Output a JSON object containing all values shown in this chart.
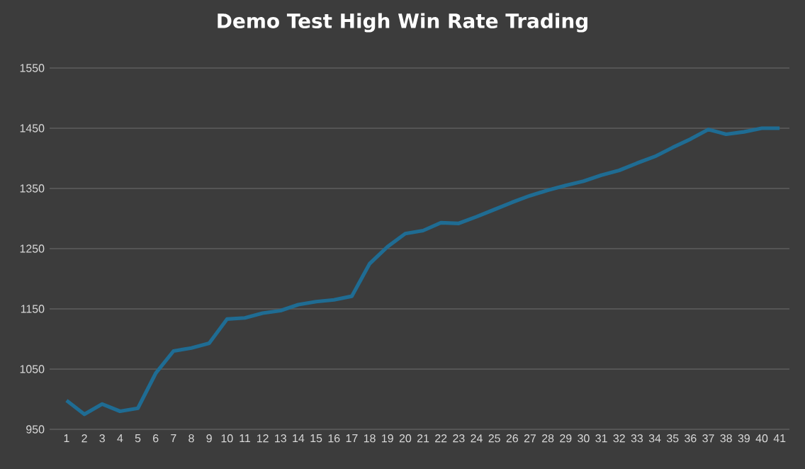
{
  "chart_data": {
    "type": "line",
    "title": "Demo Test High Win Rate Trading",
    "categories": [
      "1",
      "2",
      "3",
      "4",
      "5",
      "6",
      "7",
      "8",
      "9",
      "10",
      "11",
      "12",
      "13",
      "14",
      "15",
      "16",
      "17",
      "18",
      "19",
      "20",
      "21",
      "22",
      "23",
      "24",
      "25",
      "26",
      "27",
      "28",
      "29",
      "30",
      "31",
      "32",
      "33",
      "34",
      "35",
      "36",
      "37",
      "38",
      "39",
      "40",
      "41"
    ],
    "series": [
      {
        "color": "#1f6c93",
        "values": [
          998,
          975,
          992,
          980,
          985,
          1043,
          1080,
          1085,
          1093,
          1133,
          1135,
          1143,
          1147,
          1157,
          1162,
          1165,
          1171,
          1225,
          1253,
          1275,
          1280,
          1293,
          1292,
          1303,
          1315,
          1327,
          1338,
          1347,
          1355,
          1362,
          1372,
          1380,
          1392,
          1403,
          1418,
          1432,
          1448,
          1440,
          1444,
          1450,
          1450
        ]
      }
    ],
    "ylim": [
      950,
      1550
    ],
    "yticks": [
      950,
      1050,
      1150,
      1250,
      1350,
      1450,
      1550
    ],
    "grid": "y",
    "marker": "none",
    "line_style": "solid"
  }
}
